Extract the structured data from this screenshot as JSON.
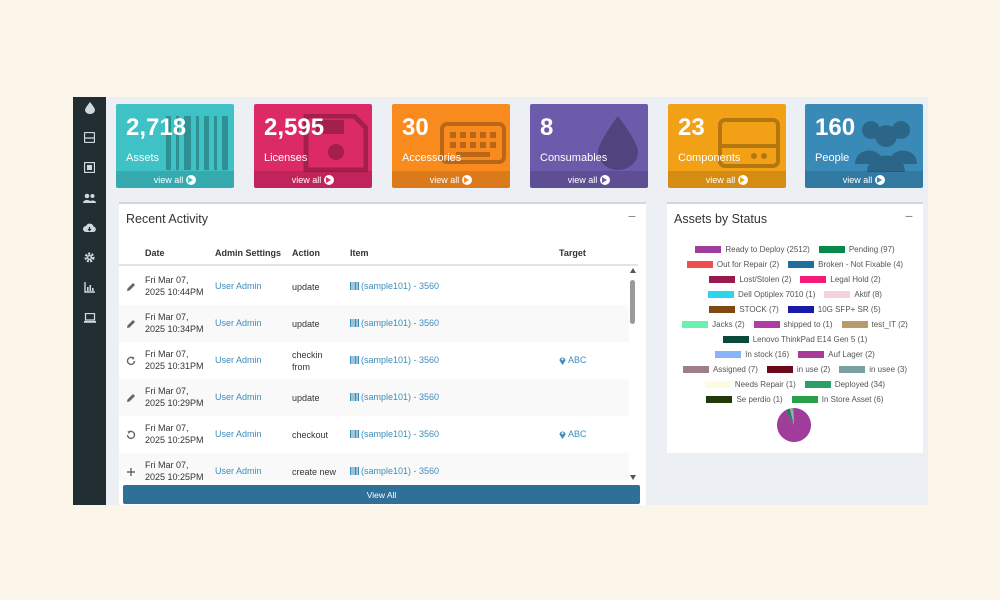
{
  "stats": [
    {
      "count": "2,718",
      "label": "Assets",
      "link": "view all",
      "color": "#3ec2c6",
      "icon": "barcode-icon"
    },
    {
      "count": "2,595",
      "label": "Licenses",
      "link": "view all",
      "color": "#dc2a67",
      "icon": "floppy-disk-icon"
    },
    {
      "count": "30",
      "label": "Accessories",
      "link": "view all",
      "color": "#f98b1e",
      "icon": "keyboard-icon"
    },
    {
      "count": "8",
      "label": "Consumables",
      "link": "view all",
      "color": "#6c5aaa",
      "icon": "droplet-icon"
    },
    {
      "count": "23",
      "label": "Components",
      "link": "view all",
      "color": "#f2a016",
      "icon": "hdd-icon"
    },
    {
      "count": "160",
      "label": "People",
      "link": "view all",
      "color": "#3a8ab8",
      "icon": "users-icon"
    }
  ],
  "sidebar": {
    "icons": [
      "droplet-icon",
      "hdd-icon",
      "server-icon",
      "users-icon",
      "cloud-download-icon",
      "gear-icon",
      "chart-icon",
      "laptop-icon"
    ]
  },
  "activity": {
    "title": "Recent Activity",
    "minimize": "−",
    "columns": {
      "date": "Date",
      "admin": "Admin Settings",
      "action": "Action",
      "item": "Item",
      "target": "Target"
    },
    "rows": [
      {
        "icon": "pencil-icon",
        "date_line1": "Fri Mar 07,",
        "date_line2": "2025 10:44PM",
        "admin": "User Admin",
        "action": "update",
        "item": "(sample101) - 3560",
        "target": ""
      },
      {
        "icon": "pencil-icon",
        "date_line1": "Fri Mar 07,",
        "date_line2": "2025 10:34PM",
        "admin": "User Admin",
        "action": "update",
        "item": "(sample101) - 3560",
        "target": ""
      },
      {
        "icon": "redo-icon",
        "date_line1": "Fri Mar 07,",
        "date_line2": "2025 10:31PM",
        "admin": "User Admin",
        "action": "checkin from",
        "item": "(sample101) - 3560",
        "target": "ABC"
      },
      {
        "icon": "pencil-icon",
        "date_line1": "Fri Mar 07,",
        "date_line2": "2025 10:29PM",
        "admin": "User Admin",
        "action": "update",
        "item": "(sample101) - 3560",
        "target": ""
      },
      {
        "icon": "undo-icon",
        "date_line1": "Fri Mar 07,",
        "date_line2": "2025 10:25PM",
        "admin": "User Admin",
        "action": "checkout",
        "item": "(sample101) - 3560",
        "target": "ABC"
      },
      {
        "icon": "plus-icon",
        "date_line1": "Fri Mar 07,",
        "date_line2": "2025 10:25PM",
        "admin": "User Admin",
        "action": "create new",
        "item": "(sample101) - 3560",
        "target": ""
      }
    ],
    "view_all": "View All"
  },
  "assets_status": {
    "title": "Assets by Status",
    "minimize": "−",
    "legend_rows": [
      [
        {
          "label": "Ready to Deploy (2512)",
          "color": "#a03c9a"
        },
        {
          "label": "Pending (97)",
          "color": "#0a8a4a"
        }
      ],
      [
        {
          "label": "Out for Repair (2)",
          "color": "#f04e4e"
        },
        {
          "label": "Broken - Not Fixable (4)",
          "color": "#1f6fa0"
        }
      ],
      [
        {
          "label": "Lost/Stolen (2)",
          "color": "#9a1a4e"
        },
        {
          "label": "Legal Hold (2)",
          "color": "#f41a7a"
        }
      ],
      [
        {
          "label": "Dell Optiplex 7010 (1)",
          "color": "#2ad6ec"
        },
        {
          "label": "Aktif (8)",
          "color": "#f6d2e0"
        }
      ],
      [
        {
          "label": "STOCK (7)",
          "color": "#7c4a12"
        },
        {
          "label": "10G SFP+ SR (5)",
          "color": "#1a1aa8"
        }
      ],
      [
        {
          "label": "Jacks (2)",
          "color": "#6af0b0"
        },
        {
          "label": "shipped to (1)",
          "color": "#b03ca8"
        },
        {
          "label": "test_IT (2)",
          "color": "#b89a6e"
        }
      ],
      [
        {
          "label": "Lenovo ThinkPad E14 Gen 5 (1)",
          "color": "#0a4a3a"
        }
      ],
      [
        {
          "label": "In stock (16)",
          "color": "#8ab4f8"
        },
        {
          "label": "Auf Lager (2)",
          "color": "#a83c98"
        }
      ],
      [
        {
          "label": "Assigned (7)",
          "color": "#a08088"
        },
        {
          "label": "in use (2)",
          "color": "#6a0a1a"
        },
        {
          "label": "in usee (3)",
          "color": "#7aa0a0"
        }
      ],
      [
        {
          "label": "Needs Repair (1)",
          "color": "#fcfce0"
        },
        {
          "label": "Deployed (34)",
          "color": "#2aa068"
        }
      ],
      [
        {
          "label": "Se perdio (1)",
          "color": "#223a0a"
        },
        {
          "label": "In Store Asset (6)",
          "color": "#2aa04a"
        }
      ]
    ]
  },
  "chart_data": {
    "type": "pie",
    "title": "Assets by Status",
    "categories": [
      "Ready to Deploy",
      "Pending",
      "Out for Repair",
      "Broken - Not Fixable",
      "Lost/Stolen",
      "Legal Hold",
      "Dell Optiplex 7010",
      "Aktif",
      "STOCK",
      "10G SFP+ SR",
      "Jacks",
      "shipped to",
      "test_IT",
      "Lenovo ThinkPad E14 Gen 5",
      "In stock",
      "Auf Lager",
      "Assigned",
      "in use",
      "in usee",
      "Needs Repair",
      "Deployed",
      "Se perdio",
      "In Store Asset"
    ],
    "values": [
      2512,
      97,
      2,
      4,
      2,
      2,
      1,
      8,
      7,
      5,
      2,
      1,
      2,
      1,
      16,
      2,
      7,
      2,
      3,
      1,
      34,
      1,
      6
    ],
    "colors": [
      "#a03c9a",
      "#0a8a4a",
      "#f04e4e",
      "#1f6fa0",
      "#9a1a4e",
      "#f41a7a",
      "#2ad6ec",
      "#f6d2e0",
      "#7c4a12",
      "#1a1aa8",
      "#6af0b0",
      "#b03ca8",
      "#b89a6e",
      "#0a4a3a",
      "#8ab4f8",
      "#a83c98",
      "#a08088",
      "#6a0a1a",
      "#7aa0a0",
      "#fcfce0",
      "#2aa068",
      "#223a0a",
      "#2aa04a"
    ],
    "legend": "top"
  }
}
